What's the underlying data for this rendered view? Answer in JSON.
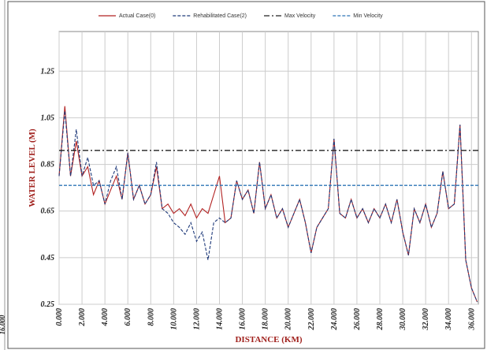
{
  "chart_data": {
    "type": "line",
    "x_label": "DISTANCE (KM)",
    "y_label": "WATER LEVEL (M)",
    "x": [
      0,
      0.5,
      1,
      1.5,
      2,
      2.5,
      3,
      3.5,
      4,
      4.5,
      5,
      5.5,
      6,
      6.5,
      7,
      7.5,
      8,
      8.5,
      9,
      9.5,
      10,
      10.5,
      11,
      11.5,
      12,
      12.5,
      13,
      13.5,
      14,
      14.5,
      15,
      15.5,
      16,
      16.5,
      17,
      17.5,
      18,
      18.5,
      19,
      19.5,
      20,
      20.5,
      21,
      21.5,
      22,
      22.5,
      23,
      23.5,
      24,
      24.5,
      25,
      25.5,
      26,
      26.5,
      27,
      27.5,
      28,
      28.5,
      29,
      29.5,
      30,
      30.5,
      31,
      31.5,
      32,
      32.5,
      33,
      33.5,
      34,
      34.5,
      35,
      35.5,
      36,
      36.5
    ],
    "series": [
      {
        "name": "Actual Case(0)",
        "color": "#b22222",
        "dash": "solid",
        "values": [
          0.8,
          1.1,
          0.8,
          0.95,
          0.8,
          0.84,
          0.72,
          0.78,
          0.68,
          0.74,
          0.8,
          0.7,
          0.9,
          0.7,
          0.76,
          0.68,
          0.72,
          0.84,
          0.66,
          0.68,
          0.64,
          0.66,
          0.63,
          0.68,
          0.62,
          0.66,
          0.64,
          0.72,
          0.8,
          0.6,
          0.62,
          0.78,
          0.7,
          0.74,
          0.64,
          0.86,
          0.66,
          0.72,
          0.62,
          0.66,
          0.58,
          0.64,
          0.7,
          0.6,
          0.47,
          0.58,
          0.62,
          0.66,
          0.96,
          0.64,
          0.62,
          0.7,
          0.62,
          0.66,
          0.6,
          0.66,
          0.62,
          0.68,
          0.6,
          0.7,
          0.56,
          0.46,
          0.66,
          0.6,
          0.68,
          0.58,
          0.64,
          0.82,
          0.66,
          0.68,
          1.02,
          0.44,
          0.32,
          0.26
        ]
      },
      {
        "name": "Rehabilitated Case(2)",
        "color": "#1f3a7a",
        "dash": "dashed",
        "values": [
          0.8,
          1.08,
          0.8,
          1.0,
          0.8,
          0.88,
          0.76,
          0.78,
          0.68,
          0.78,
          0.84,
          0.7,
          0.9,
          0.7,
          0.76,
          0.68,
          0.72,
          0.86,
          0.66,
          0.64,
          0.6,
          0.58,
          0.55,
          0.6,
          0.52,
          0.56,
          0.44,
          0.6,
          0.62,
          0.6,
          0.62,
          0.78,
          0.7,
          0.74,
          0.64,
          0.86,
          0.66,
          0.72,
          0.62,
          0.66,
          0.58,
          0.64,
          0.7,
          0.6,
          0.47,
          0.58,
          0.62,
          0.66,
          0.96,
          0.64,
          0.62,
          0.7,
          0.62,
          0.66,
          0.6,
          0.66,
          0.62,
          0.68,
          0.6,
          0.7,
          0.56,
          0.46,
          0.66,
          0.6,
          0.68,
          0.58,
          0.64,
          0.82,
          0.66,
          0.68,
          1.02,
          0.44,
          0.32,
          0.26
        ]
      }
    ],
    "hlines": [
      {
        "name": "Max Velocity",
        "value": 0.91,
        "color": "#222222",
        "dash": "dashdot"
      },
      {
        "name": "Min Velocity",
        "value": 0.76,
        "color": "#2e75b6",
        "dash": "dashed"
      }
    ],
    "xlim": [
      0,
      36.6
    ],
    "ylim": [
      0.25,
      1.42
    ],
    "xticks": [
      {
        "value": 0,
        "label": "0.000"
      },
      {
        "value": 2,
        "label": "2.000"
      },
      {
        "value": 4,
        "label": "4.000"
      },
      {
        "value": 6,
        "label": "6.000"
      },
      {
        "value": 8,
        "label": "8.000"
      },
      {
        "value": 10,
        "label": "10.000"
      },
      {
        "value": 12,
        "label": "12.000"
      },
      {
        "value": 14,
        "label": "14.000"
      },
      {
        "value": 16,
        "label": "16.000"
      },
      {
        "value": 18,
        "label": "18.000"
      },
      {
        "value": 20,
        "label": "20.000"
      },
      {
        "value": 22,
        "label": "22.000"
      },
      {
        "value": 24,
        "label": "24.000"
      },
      {
        "value": 26,
        "label": "26.000"
      },
      {
        "value": 28,
        "label": "28.000"
      },
      {
        "value": 30,
        "label": "30.000"
      },
      {
        "value": 32,
        "label": "32.000"
      },
      {
        "value": 34,
        "label": "34.000"
      },
      {
        "value": 36,
        "label": "36.000"
      }
    ],
    "yticks": [
      0.25,
      0.45,
      0.65,
      0.85,
      1.05,
      1.25
    ],
    "grid": true,
    "legend": "top"
  },
  "background_fragment": {
    "label": "16.000"
  }
}
